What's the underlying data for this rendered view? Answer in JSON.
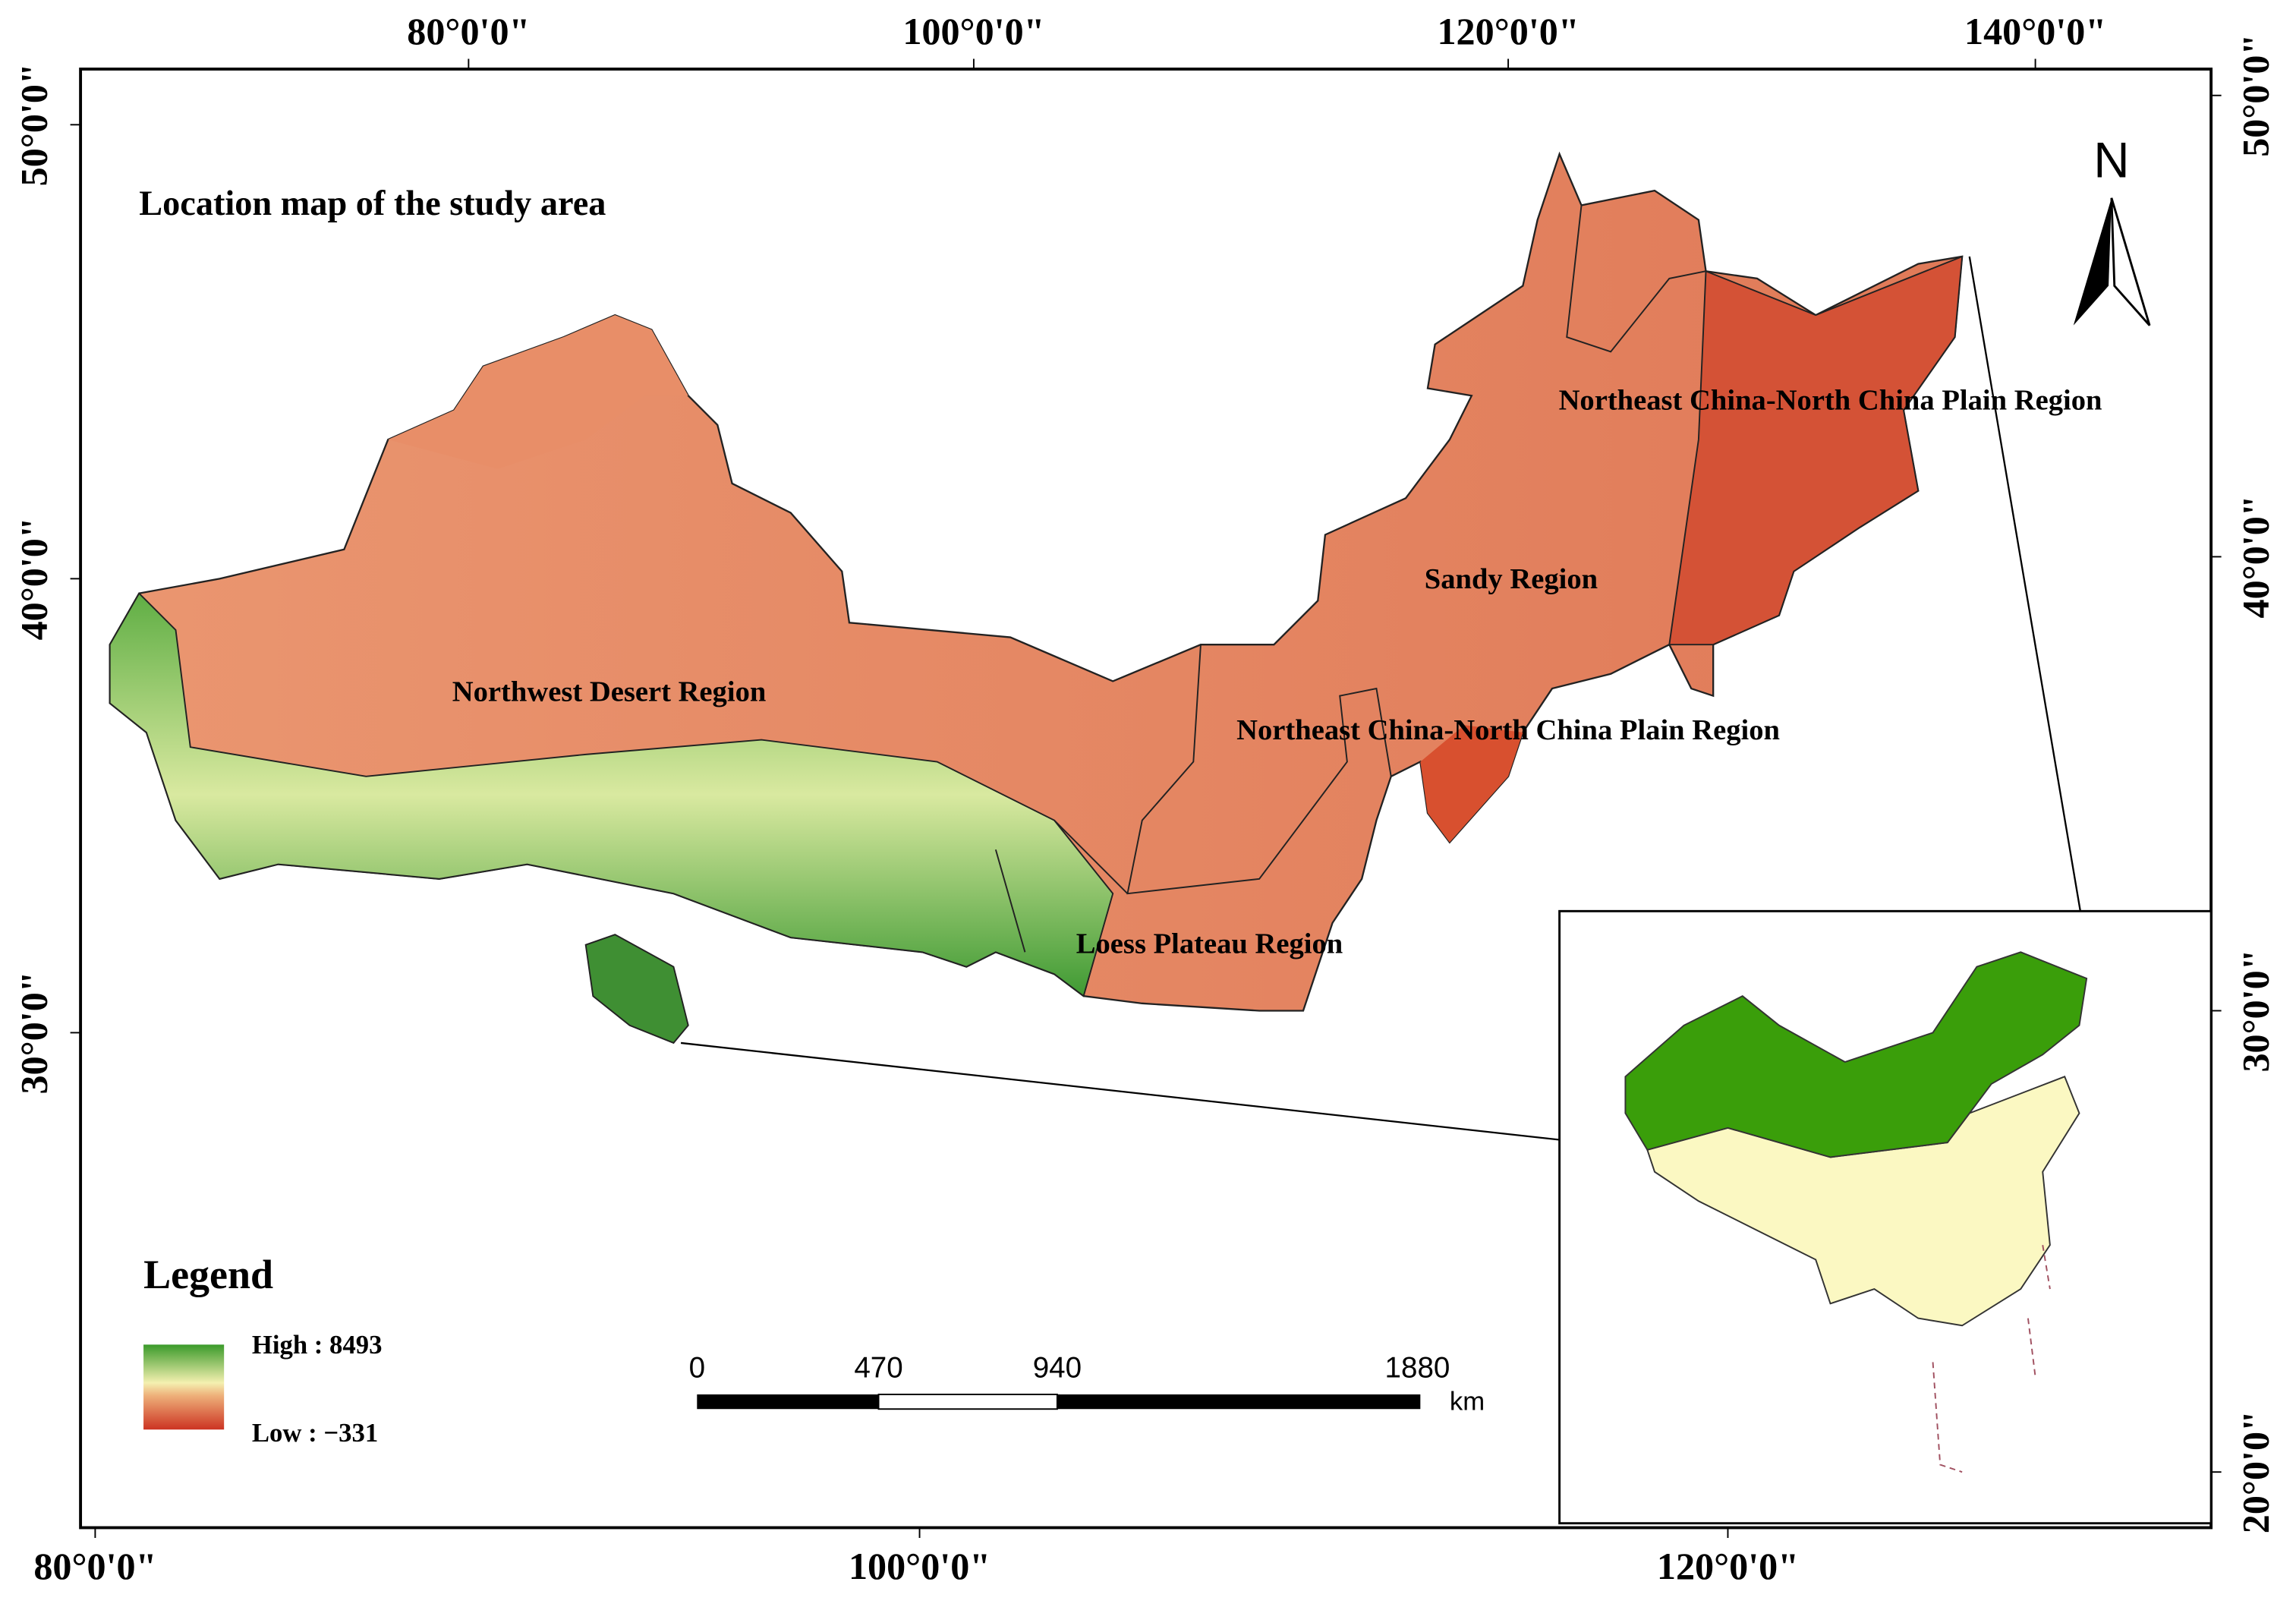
{
  "title": "Location map of the study area",
  "north": "N",
  "regions": [
    {
      "label": "Northeast China-North China Plain Region"
    },
    {
      "label": "Sandy Region"
    },
    {
      "label": "Northeast China-North China Plain Region"
    },
    {
      "label": "Northwest Desert Region"
    },
    {
      "label": "Loess Plateau Region"
    }
  ],
  "graticule": {
    "top": [
      "80°0'0\"",
      "100°0'0\"",
      "120°0'0\"",
      "140°0'0\""
    ],
    "bottom": [
      "80°0'0\"",
      "100°0'0\"",
      "120°0'0\""
    ],
    "left": [
      "50°0'0\"",
      "40°0'0\"",
      "30°0'0\""
    ],
    "right": [
      "50°0'0\"",
      "40°0'0\"",
      "30°0'0\"",
      "20°0'0\""
    ]
  },
  "legend": {
    "title": "Legend",
    "high": "High : 8493",
    "low": "Low : −331"
  },
  "scale_bar": {
    "labels": [
      "0",
      "470",
      "940",
      "1880"
    ],
    "unit": "km"
  }
}
